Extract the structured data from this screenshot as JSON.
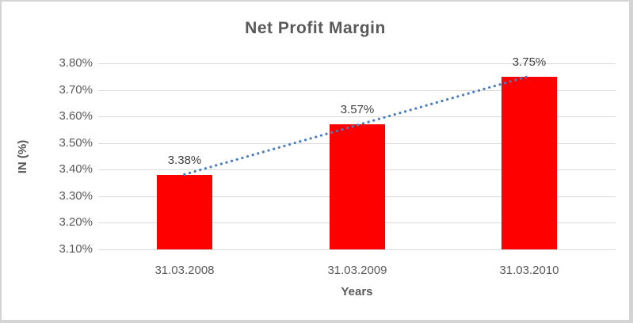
{
  "chart_data": {
    "type": "bar",
    "title": "Net Profit Margin",
    "xlabel": "Years",
    "ylabel": "IN (%)",
    "categories": [
      "31.03.2008",
      "31.03.2009",
      "31.03.2010"
    ],
    "values": [
      3.38,
      3.57,
      3.75
    ],
    "data_labels": [
      "3.38%",
      "3.57%",
      "3.75%"
    ],
    "ylim": [
      3.1,
      3.8
    ],
    "yticks": [
      {
        "value": 3.1,
        "label": "3.10%"
      },
      {
        "value": 3.2,
        "label": "3.20%"
      },
      {
        "value": 3.3,
        "label": "3.30%"
      },
      {
        "value": 3.4,
        "label": "3.40%"
      },
      {
        "value": 3.5,
        "label": "3.50%"
      },
      {
        "value": 3.6,
        "label": "3.60%"
      },
      {
        "value": 3.7,
        "label": "3.70%"
      },
      {
        "value": 3.8,
        "label": "3.80%"
      }
    ],
    "grid": true,
    "legend": "none",
    "trendline": {
      "type": "linear",
      "style": "dotted",
      "start_value": 3.382,
      "end_value": 3.752
    }
  },
  "colors": {
    "bar": "#FF0000",
    "trendline": "#4A7EBE",
    "gridline": "#d9d9d9",
    "title_text": "#595959",
    "axis_text": "#595959",
    "data_label_text": "#404040",
    "frame_border": "#d4d4d4",
    "background": "#ffffff"
  }
}
